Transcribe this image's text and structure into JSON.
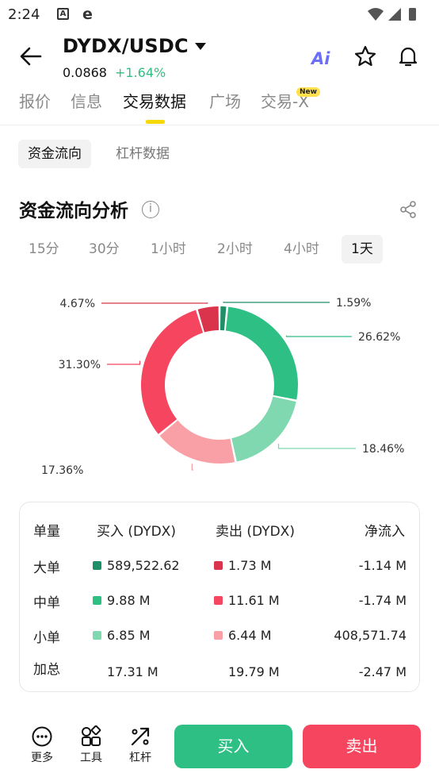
{
  "status_bar": {
    "time": "2:24",
    "icon_a": "A",
    "icon_e": "e"
  },
  "header": {
    "pair": "DYDX/USDC",
    "price": "0.0868",
    "change": "+1.64%",
    "ai_label": "Ai",
    "change_color": "#2fbf82"
  },
  "tabs": [
    {
      "label": "报价"
    },
    {
      "label": "信息"
    },
    {
      "label": "交易数据"
    },
    {
      "label": "广场"
    },
    {
      "label": "交易-X"
    }
  ],
  "new_badge": "New",
  "subtabs": [
    {
      "label": "资金流向"
    },
    {
      "label": "杠杆数据"
    }
  ],
  "section": {
    "title": "资金流向分析",
    "info_glyph": "i"
  },
  "periods": [
    {
      "label": "15分"
    },
    {
      "label": "30分"
    },
    {
      "label": "1小时"
    },
    {
      "label": "2小时"
    },
    {
      "label": "4小时"
    },
    {
      "label": "1天"
    }
  ],
  "chart_data": {
    "type": "pie",
    "donut": true,
    "slices": [
      {
        "label": "1.59%",
        "value": 1.59,
        "color": "#1e8f66"
      },
      {
        "label": "26.62%",
        "value": 26.62,
        "color": "#2ebf84"
      },
      {
        "label": "18.46%",
        "value": 18.46,
        "color": "#7fd8b0"
      },
      {
        "label": "17.36%",
        "value": 17.36,
        "color": "#f9a0a6"
      },
      {
        "label": "31.30%",
        "value": 31.3,
        "color": "#f5455f"
      },
      {
        "label": "4.67%",
        "value": 4.67,
        "color": "#d9344b"
      }
    ]
  },
  "table": {
    "headers": {
      "size": "单量",
      "buy": "买入 (DYDX)",
      "sell": "卖出 (DYDX)",
      "net": "净流入"
    },
    "rows": [
      {
        "label": "大单",
        "buy": "589,522.62",
        "sell": "1.73 M",
        "net": "-1.14 M",
        "buy_color": "#1e8f66",
        "sell_color": "#d9344b"
      },
      {
        "label": "中单",
        "buy": "9.88 M",
        "sell": "11.61 M",
        "net": "-1.74 M",
        "buy_color": "#2ebf84",
        "sell_color": "#f5455f"
      },
      {
        "label": "小单",
        "buy": "6.85 M",
        "sell": "6.44 M",
        "net": "408,571.74",
        "buy_color": "#7fd8b0",
        "sell_color": "#f9a0a6"
      }
    ],
    "total": {
      "label": "加总",
      "buy": "17.31 M",
      "sell": "19.79 M",
      "net": "-2.47 M"
    }
  },
  "bottom_bar": {
    "more": "更多",
    "tools": "工具",
    "leverage": "杠杆",
    "buy": "买入",
    "sell": "卖出",
    "buy_color": "#2ebf84",
    "sell_color": "#f5455f"
  }
}
